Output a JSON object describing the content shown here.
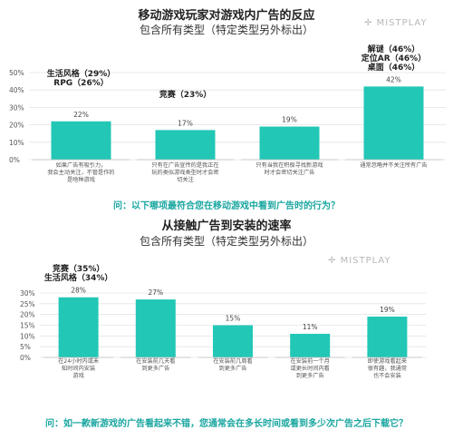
{
  "panels": [
    {
      "title": "移动游戏玩家对游戏内广告的反应",
      "subtitle": "包含所有类型（特定类型另外标出）",
      "watermark": "MISTPLAY",
      "question": "问：以下哪项最符合您在移动游戏中看到广告时的行为？",
      "callouts": [
        {
          "lines": [
            "生活风格（29%）",
            "RPG（26%）"
          ],
          "bar": 0
        },
        {
          "lines": [
            "竞赛（23%）"
          ],
          "bar": 1
        },
        {
          "lines": [
            "解谜（46%）",
            "定位AR（46%）",
            "桌面（46%）"
          ],
          "bar": 3
        }
      ],
      "chart_data": {
        "type": "bar",
        "categories": [
          [
            "如果广告有吸引力，",
            "我会主动关注，不管是作的",
            "是啥种游戏"
          ],
          [
            "只有在广告宣传的是我正在",
            "玩的类似游戏类型时才会密",
            "切关注"
          ],
          [
            "只有当我在积极寻找新游戏",
            "时才会密切关注广告"
          ],
          [
            "通常忽略并不关注所有广告"
          ]
        ],
        "values": [
          22,
          17,
          19,
          42
        ],
        "value_labels": [
          "22%",
          "17%",
          "19%",
          "42%"
        ],
        "ylim": [
          0,
          50
        ],
        "yticks": [
          "0%",
          "10%",
          "20%",
          "30%",
          "40%",
          "50%"
        ],
        "grid": true,
        "color": "#22c7b6"
      }
    },
    {
      "title": "从接触广告到安装的速率",
      "subtitle": "包含所有类型（特定类型另外标出）",
      "watermark": "MISTPLAY",
      "question": "问：如一款新游戏的广告看起来不错，您通常会在多长时间或看到多少次广告之后下载它？",
      "callouts": [
        {
          "lines": [
            "竞赛（35%）",
            "生活风格（34%）"
          ],
          "bar": 0
        }
      ],
      "chart_data": {
        "type": "bar",
        "categories": [
          [
            "在24小时内或未",
            "知时间内安装",
            "游戏"
          ],
          [
            "在安装前几天看",
            "到更多广告"
          ],
          [
            "在安装前几周看",
            "到更多广告"
          ],
          [
            "在安装前一个月",
            "或更长时间内看",
            "到更多广告"
          ],
          [
            "即使游戏看起来",
            "很有趣，我通常",
            "也不会安装"
          ]
        ],
        "values": [
          28,
          27,
          15,
          11,
          19
        ],
        "value_labels": [
          "28%",
          "27%",
          "15%",
          "11%",
          "19%"
        ],
        "ylim": [
          0,
          30
        ],
        "yticks": [
          "0%",
          "5%",
          "10%",
          "15%",
          "20%",
          "25%",
          "30%"
        ],
        "grid": true,
        "color": "#22c7b6"
      }
    }
  ]
}
